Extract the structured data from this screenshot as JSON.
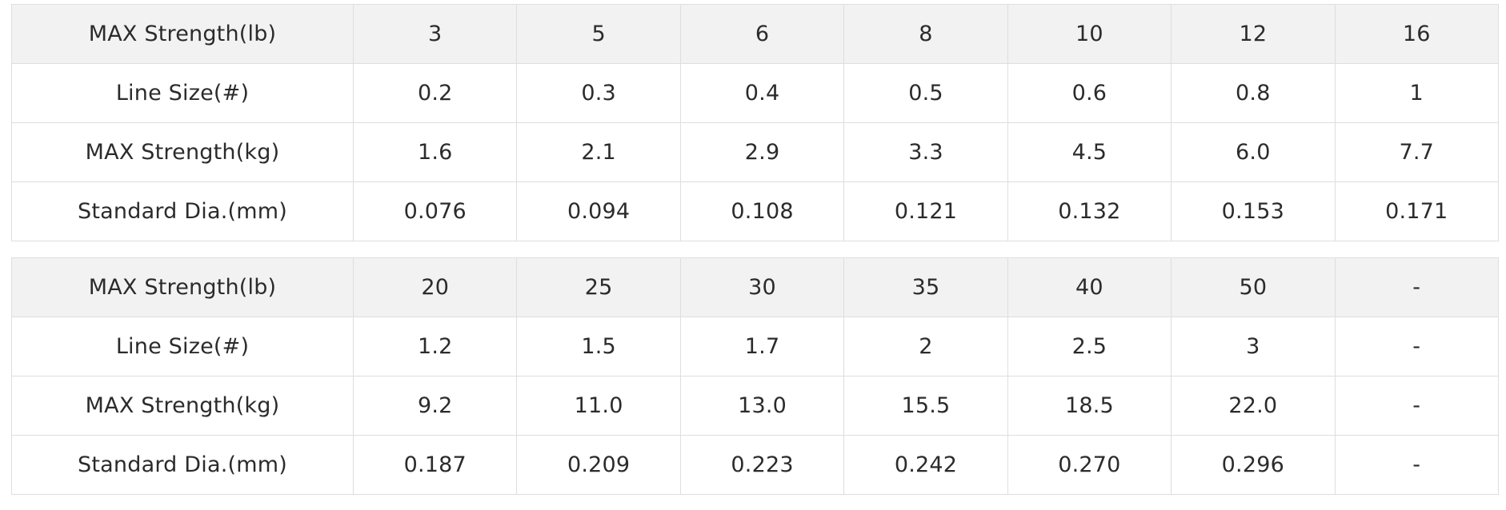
{
  "tables": [
    {
      "rows": [
        {
          "label": "MAX Strength(lb)",
          "values": [
            "3",
            "5",
            "6",
            "8",
            "10",
            "12",
            "16"
          ]
        },
        {
          "label": "Line Size(#)",
          "values": [
            "0.2",
            "0.3",
            "0.4",
            "0.5",
            "0.6",
            "0.8",
            "1"
          ]
        },
        {
          "label": "MAX Strength(kg)",
          "values": [
            "1.6",
            "2.1",
            "2.9",
            "3.3",
            "4.5",
            "6.0",
            "7.7"
          ]
        },
        {
          "label": "Standard Dia.(mm)",
          "values": [
            "0.076",
            "0.094",
            "0.108",
            "0.121",
            "0.132",
            "0.153",
            "0.171"
          ]
        }
      ]
    },
    {
      "rows": [
        {
          "label": "MAX Strength(lb)",
          "values": [
            "20",
            "25",
            "30",
            "35",
            "40",
            "50",
            "-"
          ]
        },
        {
          "label": "Line Size(#)",
          "values": [
            "1.2",
            "1.5",
            "1.7",
            "2",
            "2.5",
            "3",
            "-"
          ]
        },
        {
          "label": "MAX Strength(kg)",
          "values": [
            "9.2",
            "11.0",
            "13.0",
            "15.5",
            "18.5",
            "22.0",
            "-"
          ]
        },
        {
          "label": "Standard Dia.(mm)",
          "values": [
            "0.187",
            "0.209",
            "0.223",
            "0.242",
            "0.270",
            "0.296",
            "-"
          ]
        }
      ]
    }
  ]
}
